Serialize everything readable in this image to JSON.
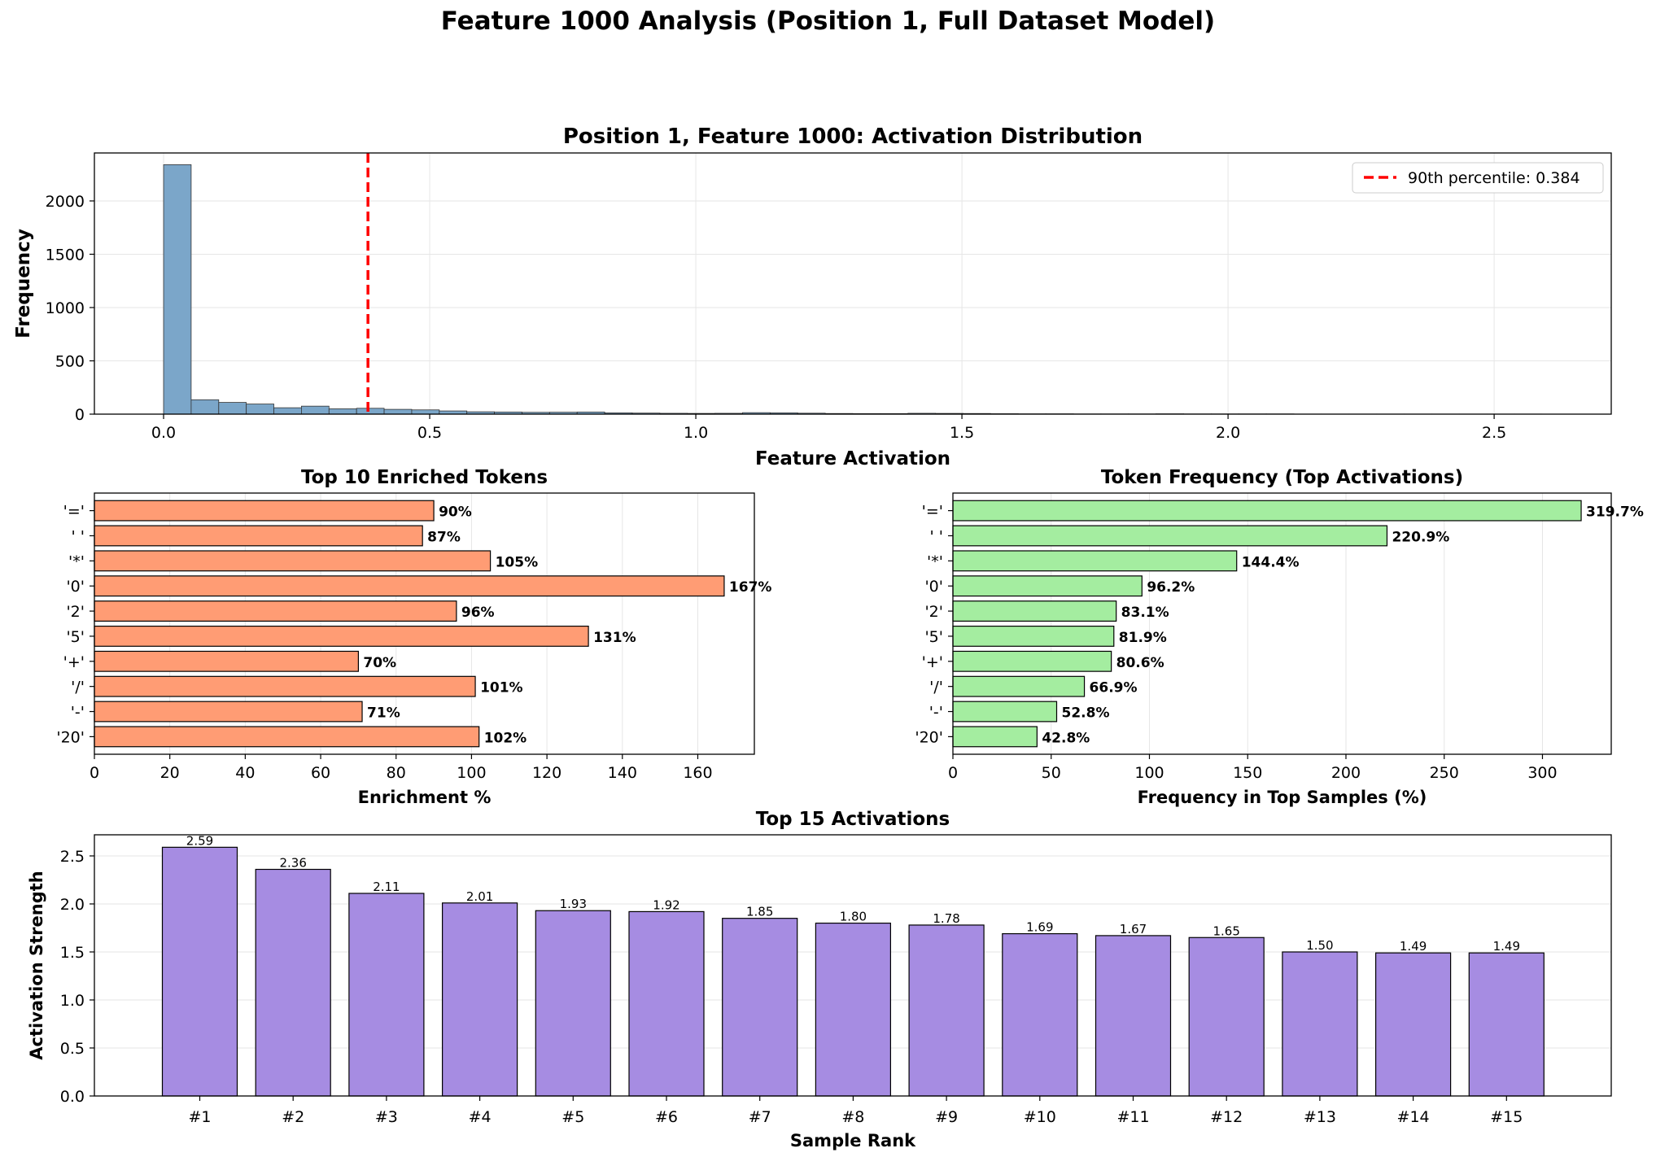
{
  "figure": {
    "title": "Feature 1000 Analysis (Position 1, Full Dataset Model)"
  },
  "chart_data": [
    {
      "type": "bar",
      "subtype": "histogram",
      "title": "Position 1, Feature 1000: Activation Distribution",
      "xlabel": "Feature Activation",
      "ylabel": "Frequency",
      "xlim": [
        -0.13,
        2.72
      ],
      "ylim": [
        0,
        2450
      ],
      "xticks": [
        "0.0",
        "0.5",
        "1.0",
        "1.5",
        "2.0",
        "2.5"
      ],
      "xtick_values": [
        0,
        0.5,
        1.0,
        1.5,
        2.0,
        2.5
      ],
      "yticks": [
        "0",
        "500",
        "1000",
        "1500",
        "2000"
      ],
      "ytick_values": [
        0,
        500,
        1000,
        1500,
        2000
      ],
      "bin_width": 0.0518,
      "bins_start": 0,
      "values": [
        2340,
        135,
        110,
        95,
        60,
        75,
        50,
        55,
        45,
        40,
        30,
        22,
        20,
        17,
        18,
        20,
        12,
        10,
        8,
        7,
        8,
        14,
        12,
        9,
        6,
        5,
        5,
        8,
        7,
        6,
        4,
        3,
        3,
        2,
        2,
        2,
        3,
        2,
        2,
        2,
        2,
        1,
        1,
        1,
        1,
        1,
        1,
        1,
        1,
        1
      ],
      "color": "#7ba6c9",
      "reference_line": {
        "x": 0.384,
        "label": "90th percentile: 0.384",
        "color": "#ff0000",
        "style": "dashed"
      },
      "legend_position": "upper-right",
      "grid": true
    },
    {
      "type": "bar",
      "orientation": "horizontal",
      "title": "Top 10 Enriched Tokens",
      "xlabel": "Enrichment %",
      "categories": [
        "'='",
        "' '",
        "'*'",
        "'0'",
        "'2'",
        "'5'",
        "'+'",
        "'/'",
        "'-'",
        "'20'"
      ],
      "values": [
        90,
        87,
        105,
        167,
        96,
        131,
        70,
        101,
        71,
        102
      ],
      "labels": [
        "90%",
        "87%",
        "105%",
        "167%",
        "96%",
        "131%",
        "70%",
        "101%",
        "71%",
        "102%"
      ],
      "xlim": [
        0,
        175
      ],
      "xticks": [
        "0",
        "20",
        "40",
        "60",
        "80",
        "100",
        "120",
        "140",
        "160"
      ],
      "xtick_values": [
        0,
        20,
        40,
        60,
        80,
        100,
        120,
        140,
        160
      ],
      "color": "#ff9c74",
      "grid": true
    },
    {
      "type": "bar",
      "orientation": "horizontal",
      "title": "Token Frequency (Top Activations)",
      "xlabel": "Frequency in Top Samples (%)",
      "categories": [
        "'='",
        "' '",
        "'*'",
        "'0'",
        "'2'",
        "'5'",
        "'+'",
        "'/'",
        "'-'",
        "'20'"
      ],
      "values": [
        319.7,
        220.9,
        144.4,
        96.2,
        83.1,
        81.9,
        80.6,
        66.9,
        52.8,
        42.8
      ],
      "labels": [
        "319.7%",
        "220.9%",
        "144.4%",
        "96.2%",
        "83.1%",
        "81.9%",
        "80.6%",
        "66.9%",
        "52.8%",
        "42.8%"
      ],
      "xlim": [
        0,
        335
      ],
      "xticks": [
        "0",
        "50",
        "100",
        "150",
        "200",
        "250",
        "300"
      ],
      "xtick_values": [
        0,
        50,
        100,
        150,
        200,
        250,
        300
      ],
      "color": "#a4eda0",
      "grid": true
    },
    {
      "type": "bar",
      "title": "Top 15 Activations",
      "xlabel": "Sample Rank",
      "ylabel": "Activation Strength",
      "categories": [
        "#1",
        "#2",
        "#3",
        "#4",
        "#5",
        "#6",
        "#7",
        "#8",
        "#9",
        "#10",
        "#11",
        "#12",
        "#13",
        "#14",
        "#15"
      ],
      "values": [
        2.59,
        2.36,
        2.11,
        2.01,
        1.93,
        1.92,
        1.85,
        1.8,
        1.78,
        1.69,
        1.67,
        1.65,
        1.5,
        1.49,
        1.49
      ],
      "labels": [
        "2.59",
        "2.36",
        "2.11",
        "2.01",
        "1.93",
        "1.92",
        "1.85",
        "1.80",
        "1.78",
        "1.69",
        "1.67",
        "1.65",
        "1.50",
        "1.49",
        "1.49"
      ],
      "ylim": [
        0,
        2.72
      ],
      "yticks": [
        "0.0",
        "0.5",
        "1.0",
        "1.5",
        "2.0",
        "2.5"
      ],
      "ytick_values": [
        0,
        0.5,
        1.0,
        1.5,
        2.0,
        2.5
      ],
      "color": "#a68ce2",
      "grid": true
    }
  ]
}
